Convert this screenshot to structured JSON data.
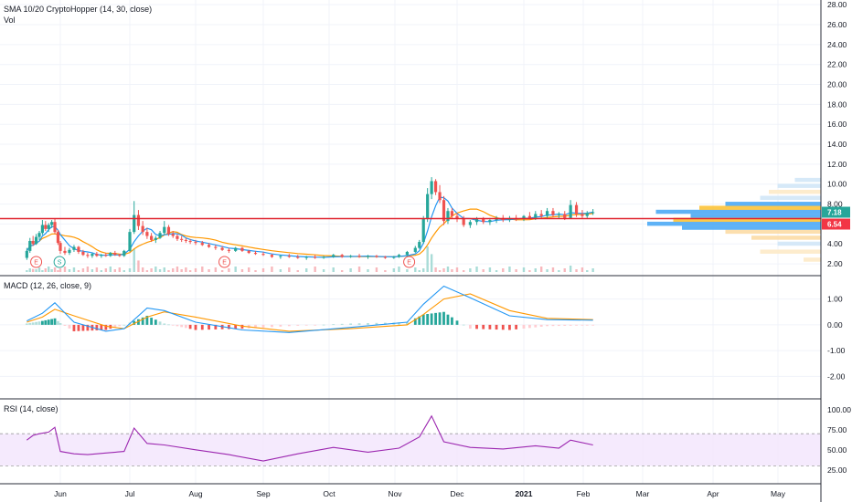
{
  "header": {
    "indicator_legend": "SMA 10/20 CryptoHopper (14, 30, close)",
    "volume_label": "Vol"
  },
  "price_badges": {
    "last": "7.18",
    "line": "6.54",
    "last_color": "#26a69a",
    "line_color": "#f23645"
  },
  "chart_data": [
    {
      "type": "line",
      "pane": "price",
      "ylim": [
        1,
        28
      ],
      "y_ticks": [
        "2.00",
        "4.00",
        "6.00",
        "8.00",
        "10.00",
        "12.00",
        "14.00",
        "16.00",
        "18.00",
        "20.00",
        "22.00",
        "24.00",
        "26.00",
        "28.00"
      ],
      "x_ticks": [
        "Jun",
        "Jul",
        "Aug",
        "Sep",
        "Oct",
        "Nov",
        "Dec",
        "2021",
        "Feb",
        "Mar",
        "Apr",
        "May"
      ],
      "horizontal_line": 6.54,
      "candles": [
        {
          "x": "May 10",
          "o": 2.6,
          "h": 3.6,
          "l": 2.4,
          "c": 3.3
        },
        {
          "x": "May 12",
          "o": 3.3,
          "h": 4.6,
          "l": 3.1,
          "c": 4.3
        },
        {
          "x": "May 14",
          "o": 4.3,
          "h": 4.8,
          "l": 3.8,
          "c": 4.0
        },
        {
          "x": "May 16",
          "o": 4.0,
          "h": 5.0,
          "l": 3.9,
          "c": 4.7
        },
        {
          "x": "May 18",
          "o": 4.7,
          "h": 5.3,
          "l": 4.4,
          "c": 5.1
        },
        {
          "x": "May 20",
          "o": 5.1,
          "h": 6.4,
          "l": 4.9,
          "c": 5.9
        },
        {
          "x": "May 22",
          "o": 5.9,
          "h": 6.3,
          "l": 5.3,
          "c": 5.5
        },
        {
          "x": "May 24",
          "o": 5.5,
          "h": 6.1,
          "l": 5.2,
          "c": 5.9
        },
        {
          "x": "May 26",
          "o": 5.9,
          "h": 6.4,
          "l": 5.6,
          "c": 6.2
        },
        {
          "x": "May 28",
          "o": 6.2,
          "h": 6.5,
          "l": 5.0,
          "c": 5.2
        },
        {
          "x": "May 30",
          "o": 5.2,
          "h": 5.4,
          "l": 3.9,
          "c": 4.1
        },
        {
          "x": "Jun 1",
          "o": 4.1,
          "h": 4.3,
          "l": 3.0,
          "c": 3.3
        },
        {
          "x": "Jun 3",
          "o": 3.3,
          "h": 3.7,
          "l": 2.9,
          "c": 3.1
        },
        {
          "x": "Jun 5",
          "o": 3.1,
          "h": 3.6,
          "l": 2.9,
          "c": 3.4
        },
        {
          "x": "Jun 7",
          "o": 3.4,
          "h": 3.9,
          "l": 3.2,
          "c": 3.7
        },
        {
          "x": "Jun 9",
          "o": 3.7,
          "h": 3.8,
          "l": 3.0,
          "c": 3.2
        },
        {
          "x": "Jun 11",
          "o": 3.2,
          "h": 3.4,
          "l": 2.8,
          "c": 2.9
        },
        {
          "x": "Jun 13",
          "o": 2.9,
          "h": 3.1,
          "l": 2.6,
          "c": 2.8
        },
        {
          "x": "Jun 15",
          "o": 2.8,
          "h": 3.1,
          "l": 2.6,
          "c": 3.0
        },
        {
          "x": "Jun 17",
          "o": 3.0,
          "h": 3.2,
          "l": 2.7,
          "c": 2.8
        },
        {
          "x": "Jun 19",
          "o": 2.8,
          "h": 3.0,
          "l": 2.6,
          "c": 2.9
        },
        {
          "x": "Jun 21",
          "o": 2.9,
          "h": 3.1,
          "l": 2.7,
          "c": 2.8
        },
        {
          "x": "Jun 23",
          "o": 2.8,
          "h": 3.2,
          "l": 2.7,
          "c": 3.1
        },
        {
          "x": "Jun 25",
          "o": 3.1,
          "h": 3.3,
          "l": 2.8,
          "c": 2.9
        },
        {
          "x": "Jun 27",
          "o": 2.9,
          "h": 3.0,
          "l": 2.7,
          "c": 2.8
        },
        {
          "x": "Jun 29",
          "o": 2.8,
          "h": 3.4,
          "l": 2.7,
          "c": 3.3
        },
        {
          "x": "Jul 1",
          "o": 3.3,
          "h": 5.5,
          "l": 3.2,
          "c": 5.2
        },
        {
          "x": "Jul 3",
          "o": 5.2,
          "h": 8.3,
          "l": 5.0,
          "c": 6.9
        },
        {
          "x": "Jul 5",
          "o": 6.9,
          "h": 7.4,
          "l": 5.4,
          "c": 5.8
        },
        {
          "x": "Jul 7",
          "o": 5.8,
          "h": 6.3,
          "l": 4.9,
          "c": 5.2
        },
        {
          "x": "Jul 9",
          "o": 5.2,
          "h": 5.6,
          "l": 4.5,
          "c": 4.8
        },
        {
          "x": "Jul 11",
          "o": 4.8,
          "h": 5.1,
          "l": 4.2,
          "c": 4.4
        },
        {
          "x": "Jul 13",
          "o": 4.4,
          "h": 4.8,
          "l": 4.1,
          "c": 4.6
        },
        {
          "x": "Jul 15",
          "o": 4.6,
          "h": 5.3,
          "l": 4.5,
          "c": 5.1
        },
        {
          "x": "Jul 17",
          "o": 5.1,
          "h": 6.3,
          "l": 4.9,
          "c": 5.7
        },
        {
          "x": "Jul 19",
          "o": 5.7,
          "h": 5.9,
          "l": 4.8,
          "c": 5.0
        },
        {
          "x": "Jul 21",
          "o": 5.0,
          "h": 5.3,
          "l": 4.6,
          "c": 4.8
        },
        {
          "x": "Jul 23",
          "o": 4.8,
          "h": 5.0,
          "l": 4.3,
          "c": 4.5
        },
        {
          "x": "Jul 25",
          "o": 4.5,
          "h": 4.8,
          "l": 4.2,
          "c": 4.4
        },
        {
          "x": "Jul 27",
          "o": 4.4,
          "h": 4.6,
          "l": 4.1,
          "c": 4.3
        },
        {
          "x": "Jul 29",
          "o": 4.3,
          "h": 4.5,
          "l": 4.0,
          "c": 4.2
        },
        {
          "x": "Aug 1",
          "o": 4.2,
          "h": 4.4,
          "l": 3.9,
          "c": 4.1
        },
        {
          "x": "Aug 4",
          "o": 4.1,
          "h": 4.3,
          "l": 3.8,
          "c": 3.9
        },
        {
          "x": "Aug 7",
          "o": 3.9,
          "h": 4.1,
          "l": 3.6,
          "c": 3.7
        },
        {
          "x": "Aug 10",
          "o": 3.7,
          "h": 3.9,
          "l": 3.4,
          "c": 3.6
        },
        {
          "x": "Aug 13",
          "o": 3.6,
          "h": 3.8,
          "l": 3.3,
          "c": 3.4
        },
        {
          "x": "Aug 16",
          "o": 3.4,
          "h": 3.6,
          "l": 3.1,
          "c": 3.3
        },
        {
          "x": "Aug 19",
          "o": 3.3,
          "h": 3.7,
          "l": 3.2,
          "c": 3.6
        },
        {
          "x": "Aug 22",
          "o": 3.6,
          "h": 3.7,
          "l": 3.2,
          "c": 3.3
        },
        {
          "x": "Aug 25",
          "o": 3.3,
          "h": 3.4,
          "l": 3.0,
          "c": 3.1
        },
        {
          "x": "Aug 28",
          "o": 3.1,
          "h": 3.3,
          "l": 2.9,
          "c": 3.0
        },
        {
          "x": "Sep 1",
          "o": 3.0,
          "h": 3.2,
          "l": 2.8,
          "c": 2.9
        },
        {
          "x": "Sep 5",
          "o": 2.9,
          "h": 3.0,
          "l": 2.6,
          "c": 2.7
        },
        {
          "x": "Sep 9",
          "o": 2.7,
          "h": 2.9,
          "l": 2.5,
          "c": 2.8
        },
        {
          "x": "Sep 13",
          "o": 2.8,
          "h": 3.0,
          "l": 2.6,
          "c": 2.7
        },
        {
          "x": "Sep 17",
          "o": 2.7,
          "h": 2.9,
          "l": 2.5,
          "c": 2.6
        },
        {
          "x": "Sep 21",
          "o": 2.6,
          "h": 2.8,
          "l": 2.4,
          "c": 2.7
        },
        {
          "x": "Sep 25",
          "o": 2.7,
          "h": 2.9,
          "l": 2.5,
          "c": 2.6
        },
        {
          "x": "Sep 29",
          "o": 2.6,
          "h": 2.8,
          "l": 2.5,
          "c": 2.7
        },
        {
          "x": "Oct 3",
          "o": 2.7,
          "h": 3.0,
          "l": 2.6,
          "c": 2.9
        },
        {
          "x": "Oct 7",
          "o": 2.9,
          "h": 3.0,
          "l": 2.6,
          "c": 2.7
        },
        {
          "x": "Oct 11",
          "o": 2.7,
          "h": 2.9,
          "l": 2.6,
          "c": 2.8
        },
        {
          "x": "Oct 15",
          "o": 2.8,
          "h": 3.0,
          "l": 2.6,
          "c": 2.7
        },
        {
          "x": "Oct 19",
          "o": 2.7,
          "h": 2.9,
          "l": 2.5,
          "c": 2.8
        },
        {
          "x": "Oct 23",
          "o": 2.8,
          "h": 2.9,
          "l": 2.6,
          "c": 2.7
        },
        {
          "x": "Oct 27",
          "o": 2.7,
          "h": 2.8,
          "l": 2.5,
          "c": 2.6
        },
        {
          "x": "Oct 31",
          "o": 2.6,
          "h": 2.8,
          "l": 2.5,
          "c": 2.7
        },
        {
          "x": "Nov 3",
          "o": 2.7,
          "h": 3.0,
          "l": 2.6,
          "c": 2.9
        },
        {
          "x": "Nov 7",
          "o": 2.9,
          "h": 3.3,
          "l": 2.8,
          "c": 3.2
        },
        {
          "x": "Nov 11",
          "o": 3.2,
          "h": 3.8,
          "l": 3.1,
          "c": 3.6
        },
        {
          "x": "Nov 13",
          "o": 3.6,
          "h": 4.4,
          "l": 3.5,
          "c": 4.2
        },
        {
          "x": "Nov 15",
          "o": 4.2,
          "h": 6.8,
          "l": 4.0,
          "c": 6.5
        },
        {
          "x": "Nov 17",
          "o": 6.5,
          "h": 9.6,
          "l": 6.2,
          "c": 9.0
        },
        {
          "x": "Nov 19",
          "o": 9.0,
          "h": 10.7,
          "l": 8.5,
          "c": 10.3
        },
        {
          "x": "Nov 21",
          "o": 10.3,
          "h": 10.5,
          "l": 8.9,
          "c": 9.2
        },
        {
          "x": "Nov 23",
          "o": 9.2,
          "h": 9.9,
          "l": 8.1,
          "c": 8.4
        },
        {
          "x": "Nov 25",
          "o": 8.4,
          "h": 8.8,
          "l": 5.9,
          "c": 6.3
        },
        {
          "x": "Nov 27",
          "o": 6.3,
          "h": 7.6,
          "l": 6.0,
          "c": 7.3
        },
        {
          "x": "Nov 29",
          "o": 7.3,
          "h": 7.6,
          "l": 6.5,
          "c": 6.8
        },
        {
          "x": "Dec 1",
          "o": 6.8,
          "h": 7.1,
          "l": 6.2,
          "c": 6.5
        },
        {
          "x": "Dec 4",
          "o": 6.5,
          "h": 6.8,
          "l": 5.7,
          "c": 5.9
        },
        {
          "x": "Dec 7",
          "o": 5.9,
          "h": 6.4,
          "l": 5.6,
          "c": 6.2
        },
        {
          "x": "Dec 10",
          "o": 6.2,
          "h": 6.7,
          "l": 5.9,
          "c": 6.5
        },
        {
          "x": "Dec 13",
          "o": 6.5,
          "h": 6.7,
          "l": 6.0,
          "c": 6.2
        },
        {
          "x": "Dec 16",
          "o": 6.2,
          "h": 6.6,
          "l": 5.9,
          "c": 6.4
        },
        {
          "x": "Dec 19",
          "o": 6.4,
          "h": 6.8,
          "l": 6.1,
          "c": 6.6
        },
        {
          "x": "Dec 22",
          "o": 6.6,
          "h": 6.9,
          "l": 6.2,
          "c": 6.4
        },
        {
          "x": "Dec 25",
          "o": 6.4,
          "h": 6.8,
          "l": 6.2,
          "c": 6.6
        },
        {
          "x": "Dec 28",
          "o": 6.6,
          "h": 6.9,
          "l": 6.3,
          "c": 6.5
        },
        {
          "x": "Jan 1",
          "o": 6.5,
          "h": 6.9,
          "l": 6.3,
          "c": 6.8
        },
        {
          "x": "Jan 4",
          "o": 6.8,
          "h": 7.2,
          "l": 6.5,
          "c": 6.6
        },
        {
          "x": "Jan 7",
          "o": 6.6,
          "h": 7.3,
          "l": 6.4,
          "c": 7.0
        },
        {
          "x": "Jan 10",
          "o": 7.0,
          "h": 7.4,
          "l": 6.6,
          "c": 6.8
        },
        {
          "x": "Jan 13",
          "o": 6.8,
          "h": 7.6,
          "l": 6.6,
          "c": 7.3
        },
        {
          "x": "Jan 16",
          "o": 7.3,
          "h": 7.6,
          "l": 6.7,
          "c": 6.9
        },
        {
          "x": "Jan 19",
          "o": 6.9,
          "h": 7.2,
          "l": 6.5,
          "c": 7.0
        },
        {
          "x": "Jan 22",
          "o": 7.0,
          "h": 7.3,
          "l": 6.4,
          "c": 6.6
        },
        {
          "x": "Jan 25",
          "o": 6.6,
          "h": 8.4,
          "l": 6.5,
          "c": 7.9
        },
        {
          "x": "Jan 28",
          "o": 7.9,
          "h": 8.2,
          "l": 6.7,
          "c": 7.0
        },
        {
          "x": "Jan 31",
          "o": 7.0,
          "h": 7.4,
          "l": 6.6,
          "c": 6.8
        },
        {
          "x": "Feb 3",
          "o": 6.8,
          "h": 7.3,
          "l": 6.6,
          "c": 7.1
        },
        {
          "x": "Feb 6",
          "o": 7.1,
          "h": 7.5,
          "l": 6.9,
          "c": 7.18
        }
      ],
      "volume_peaks": [
        {
          "x": "May 14",
          "v": 0.12
        },
        {
          "x": "Jul 3",
          "v": 0.9
        },
        {
          "x": "Jul 5",
          "v": 0.45
        },
        {
          "x": "Nov 17",
          "v": 1.0
        },
        {
          "x": "Nov 19",
          "v": 0.7
        },
        {
          "x": "Jan 25",
          "v": 0.25
        }
      ],
      "events": [
        {
          "x": "May 16",
          "label": "E"
        },
        {
          "x": "May 31",
          "label": "S"
        },
        {
          "x": "Aug 14",
          "label": "E"
        },
        {
          "x": "Nov 8",
          "label": "E"
        }
      ]
    },
    {
      "type": "line",
      "pane": "macd",
      "title": "MACD (12, 26, close, 9)",
      "ylim": [
        -2.8,
        1.8
      ],
      "y_ticks": [
        "-2.00",
        "-1.00",
        "0.00",
        "1.00"
      ],
      "macd": [
        {
          "x": "May 10",
          "v": 0.15
        },
        {
          "x": "May 20",
          "v": 0.45
        },
        {
          "x": "May 28",
          "v": 0.85
        },
        {
          "x": "Jun 7",
          "v": 0.1
        },
        {
          "x": "Jun 21",
          "v": -0.25
        },
        {
          "x": "Jun 29",
          "v": -0.15
        },
        {
          "x": "Jul 9",
          "v": 0.65
        },
        {
          "x": "Jul 17",
          "v": 0.55
        },
        {
          "x": "Aug 1",
          "v": 0.1
        },
        {
          "x": "Aug 22",
          "v": -0.2
        },
        {
          "x": "Sep 13",
          "v": -0.3
        },
        {
          "x": "Oct 11",
          "v": -0.1
        },
        {
          "x": "Nov 7",
          "v": 0.1
        },
        {
          "x": "Nov 15",
          "v": 0.8
        },
        {
          "x": "Nov 25",
          "v": 1.5
        },
        {
          "x": "Dec 7",
          "v": 1.05
        },
        {
          "x": "Dec 25",
          "v": 0.35
        },
        {
          "x": "Jan 13",
          "v": 0.2
        },
        {
          "x": "Feb 6",
          "v": 0.18
        }
      ],
      "signal": [
        {
          "x": "May 10",
          "v": 0.1
        },
        {
          "x": "May 20",
          "v": 0.3
        },
        {
          "x": "May 28",
          "v": 0.6
        },
        {
          "x": "Jun 7",
          "v": 0.35
        },
        {
          "x": "Jun 21",
          "v": -0.05
        },
        {
          "x": "Jun 29",
          "v": -0.15
        },
        {
          "x": "Jul 9",
          "v": 0.3
        },
        {
          "x": "Jul 17",
          "v": 0.5
        },
        {
          "x": "Aug 1",
          "v": 0.3
        },
        {
          "x": "Aug 22",
          "v": -0.05
        },
        {
          "x": "Sep 13",
          "v": -0.25
        },
        {
          "x": "Oct 11",
          "v": -0.15
        },
        {
          "x": "Nov 7",
          "v": 0.0
        },
        {
          "x": "Nov 15",
          "v": 0.4
        },
        {
          "x": "Nov 25",
          "v": 1.0
        },
        {
          "x": "Dec 7",
          "v": 1.2
        },
        {
          "x": "Dec 25",
          "v": 0.55
        },
        {
          "x": "Jan 13",
          "v": 0.25
        },
        {
          "x": "Feb 6",
          "v": 0.2
        }
      ]
    },
    {
      "type": "line",
      "pane": "rsi",
      "title": "RSI (14, close)",
      "ylim": [
        10,
        110
      ],
      "y_ticks": [
        "25.00",
        "50.00",
        "75.00",
        "100.00"
      ],
      "band": [
        30,
        70
      ],
      "values": [
        {
          "x": "May 10",
          "v": 62
        },
        {
          "x": "May 14",
          "v": 68
        },
        {
          "x": "May 18",
          "v": 70
        },
        {
          "x": "May 24",
          "v": 72
        },
        {
          "x": "May 28",
          "v": 78
        },
        {
          "x": "Jun 1",
          "v": 48
        },
        {
          "x": "Jun 7",
          "v": 45
        },
        {
          "x": "Jun 13",
          "v": 44
        },
        {
          "x": "Jun 21",
          "v": 46
        },
        {
          "x": "Jun 29",
          "v": 48
        },
        {
          "x": "Jul 3",
          "v": 77
        },
        {
          "x": "Jul 9",
          "v": 58
        },
        {
          "x": "Jul 17",
          "v": 56
        },
        {
          "x": "Aug 1",
          "v": 50
        },
        {
          "x": "Aug 16",
          "v": 44
        },
        {
          "x": "Sep 1",
          "v": 36
        },
        {
          "x": "Sep 17",
          "v": 45
        },
        {
          "x": "Oct 3",
          "v": 53
        },
        {
          "x": "Oct 19",
          "v": 47
        },
        {
          "x": "Nov 3",
          "v": 52
        },
        {
          "x": "Nov 13",
          "v": 66
        },
        {
          "x": "Nov 19",
          "v": 92
        },
        {
          "x": "Nov 25",
          "v": 60
        },
        {
          "x": "Dec 7",
          "v": 53
        },
        {
          "x": "Dec 22",
          "v": 51
        },
        {
          "x": "Jan 7",
          "v": 55
        },
        {
          "x": "Jan 19",
          "v": 52
        },
        {
          "x": "Jan 25",
          "v": 62
        },
        {
          "x": "Feb 6",
          "v": 56
        }
      ]
    }
  ]
}
